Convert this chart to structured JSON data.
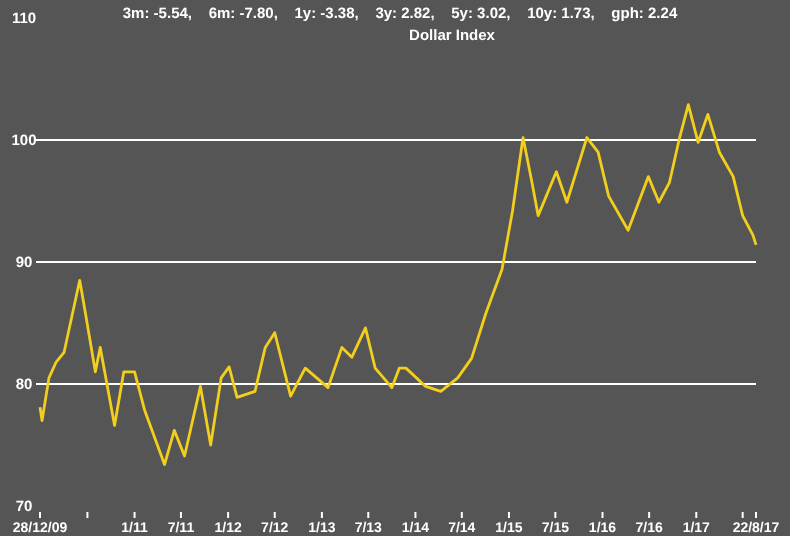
{
  "chart_data": {
    "type": "line",
    "title": "Dollar Index",
    "subtitle": "3m: -5.54,    6m: -7.80,    1y: -3.38,    3y: 2.82,    5y: 3.02,    10y: 1.73,    gph: 2.24",
    "x": [
      "2009-12-28",
      "2010-01-05",
      "2010-02-01",
      "2010-03-01",
      "2010-04-01",
      "2010-06-01",
      "2010-06-20",
      "2010-08-01",
      "2010-08-20",
      "2010-10-15",
      "2010-11-20",
      "2011-01-01",
      "2011-02-10",
      "2011-04-28",
      "2011-06-05",
      "2011-07-15",
      "2011-09-15",
      "2011-10-25",
      "2011-12-05",
      "2012-01-05",
      "2012-02-05",
      "2012-04-15",
      "2012-05-25",
      "2012-07-01",
      "2012-09-01",
      "2012-10-28",
      "2013-01-25",
      "2013-03-20",
      "2013-04-28",
      "2013-06-20",
      "2013-07-28",
      "2013-10-01",
      "2013-10-30",
      "2013-11-25",
      "2014-02-10",
      "2014-04-10",
      "2014-06-15",
      "2014-08-08",
      "2014-10-03",
      "2014-12-05",
      "2015-01-15",
      "2015-02-25",
      "2015-04-01",
      "2015-04-25",
      "2015-07-05",
      "2015-08-15",
      "2015-11-01",
      "2015-12-15",
      "2016-01-25",
      "2016-04-10",
      "2016-06-28",
      "2016-08-08",
      "2016-09-18",
      "2016-10-28",
      "2016-12-01",
      "2017-01-08",
      "2017-02-15",
      "2017-04-01",
      "2017-05-25",
      "2017-07-01",
      "2017-08-10",
      "2017-08-22"
    ],
    "series": [
      {
        "color": "#f2cf1c",
        "values": [
          78.1,
          77.0,
          80.5,
          81.8,
          82.6,
          88.5,
          86.2,
          81.0,
          83.0,
          76.6,
          81.0,
          81.0,
          77.8,
          73.4,
          76.2,
          74.1,
          79.8,
          75.0,
          80.5,
          81.4,
          78.9,
          79.4,
          83.0,
          84.2,
          79.0,
          81.3,
          79.7,
          83.0,
          82.2,
          84.6,
          81.3,
          79.7,
          81.3,
          81.3,
          79.8,
          79.4,
          80.5,
          82.1,
          85.8,
          89.4,
          94.2,
          100.2,
          96.5,
          93.8,
          97.4,
          94.9,
          100.2,
          99.0,
          95.4,
          92.6,
          97.0,
          94.9,
          96.5,
          100.2,
          102.9,
          99.8,
          102.1,
          99.0,
          97.0,
          93.8,
          92.2,
          91.4
        ]
      }
    ],
    "xlim": [
      "2009-12-28",
      "2017-08-22"
    ],
    "xticks": [
      {
        "value": "2009-12-28",
        "label": "28/12/09"
      },
      {
        "value": "2010-07-01",
        "label": null
      },
      {
        "value": "2011-01-01",
        "label": "1/11"
      },
      {
        "value": "2011-07-01",
        "label": "7/11"
      },
      {
        "value": "2012-01-01",
        "label": "1/12"
      },
      {
        "value": "2012-07-01",
        "label": "7/12"
      },
      {
        "value": "2013-01-01",
        "label": "1/13"
      },
      {
        "value": "2013-07-01",
        "label": "7/13"
      },
      {
        "value": "2014-01-01",
        "label": "1/14"
      },
      {
        "value": "2014-07-01",
        "label": "7/14"
      },
      {
        "value": "2015-01-01",
        "label": "1/15"
      },
      {
        "value": "2015-07-01",
        "label": "7/15"
      },
      {
        "value": "2016-01-01",
        "label": "1/16"
      },
      {
        "value": "2016-07-01",
        "label": "7/16"
      },
      {
        "value": "2017-01-01",
        "label": "1/17"
      },
      {
        "value": "2017-07-01",
        "label": null
      },
      {
        "value": "2017-08-22",
        "label": "22/8/17"
      }
    ],
    "ylim": [
      70,
      110
    ],
    "yticks": [
      70,
      80,
      90,
      100,
      110
    ],
    "grid": "y"
  }
}
